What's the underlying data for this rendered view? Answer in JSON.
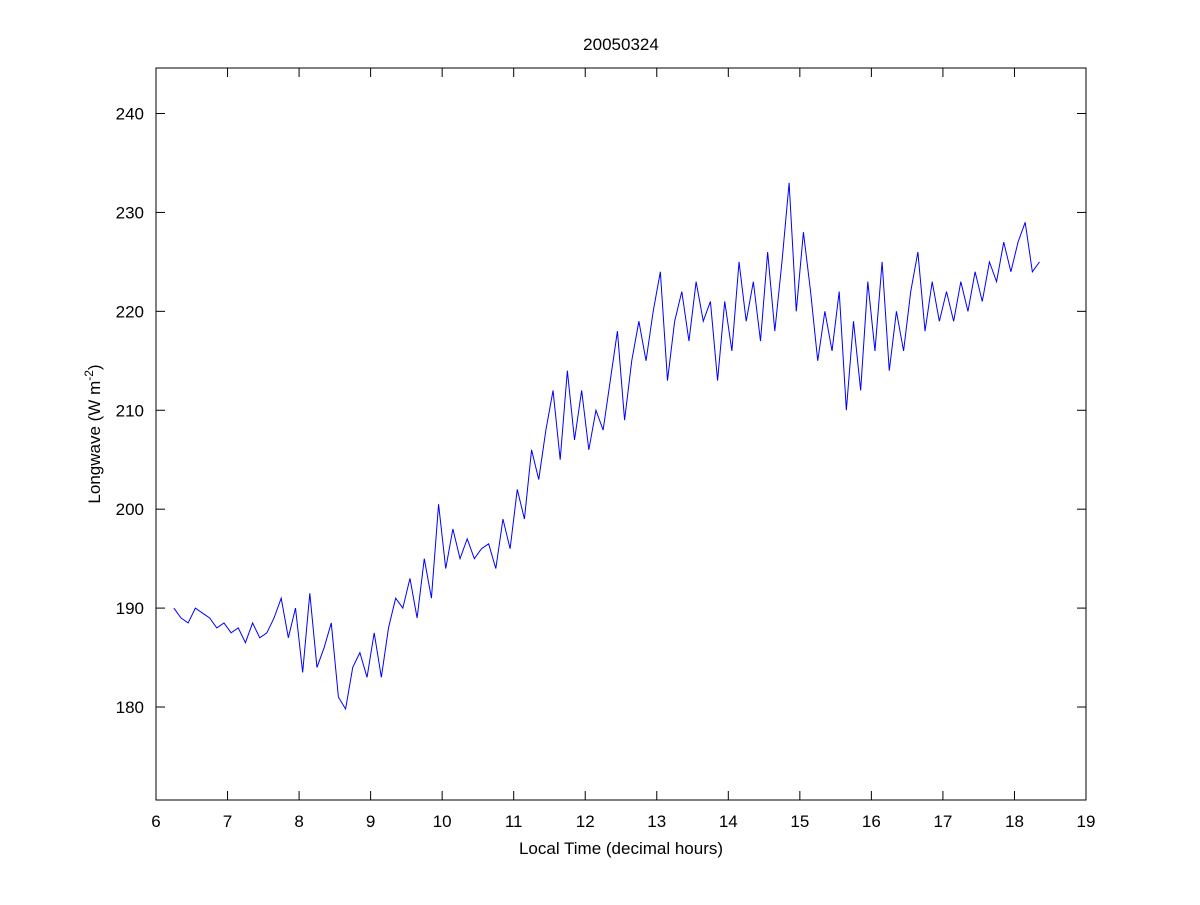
{
  "chart_data": {
    "type": "line",
    "title": "20050324",
    "xlabel": "Local Time (decimal hours)",
    "ylabel": {
      "text": "Longwave (W m",
      "superscript": "-2",
      "end": ")"
    },
    "x": [
      6.25,
      6.35,
      6.45,
      6.55,
      6.65,
      6.75,
      6.85,
      6.95,
      7.05,
      7.15,
      7.25,
      7.35,
      7.45,
      7.55,
      7.65,
      7.75,
      7.85,
      7.95,
      8.05,
      8.15,
      8.25,
      8.35,
      8.45,
      8.55,
      8.65,
      8.75,
      8.85,
      8.95,
      9.05,
      9.15,
      9.25,
      9.35,
      9.45,
      9.55,
      9.65,
      9.75,
      9.85,
      9.95,
      10.05,
      10.15,
      10.25,
      10.35,
      10.45,
      10.55,
      10.65,
      10.75,
      10.85,
      10.95,
      11.05,
      11.15,
      11.25,
      11.35,
      11.45,
      11.55,
      11.65,
      11.75,
      11.85,
      11.95,
      12.05,
      12.15,
      12.25,
      12.35,
      12.45,
      12.55,
      12.65,
      12.75,
      12.85,
      12.95,
      13.05,
      13.15,
      13.25,
      13.35,
      13.45,
      13.55,
      13.65,
      13.75,
      13.85,
      13.95,
      14.05,
      14.15,
      14.25,
      14.35,
      14.45,
      14.55,
      14.65,
      14.75,
      14.85,
      14.95,
      15.05,
      15.15,
      15.25,
      15.35,
      15.45,
      15.55,
      15.65,
      15.75,
      15.85,
      15.95,
      16.05,
      16.15,
      16.25,
      16.35,
      16.45,
      16.55,
      16.65,
      16.75,
      16.85,
      16.95,
      17.05,
      17.15,
      17.25,
      17.35,
      17.45,
      17.55,
      17.65,
      17.75,
      17.85,
      17.95,
      18.05,
      18.15,
      18.25,
      18.35
    ],
    "series": [
      {
        "color": "#0000ff",
        "values": [
          190,
          189,
          188.5,
          190,
          189.5,
          189,
          188,
          188.5,
          187.5,
          188,
          186.5,
          188.5,
          187,
          187.5,
          189,
          191,
          187,
          190,
          183.5,
          191.5,
          184,
          186,
          188.5,
          181,
          179.8,
          184,
          185.5,
          183,
          187.5,
          183,
          188,
          191,
          190,
          193,
          189,
          195,
          191,
          200.5,
          194,
          198,
          195,
          197,
          195,
          196,
          196.5,
          194,
          199,
          196,
          202,
          199,
          206,
          203,
          208,
          212,
          205,
          214,
          207,
          212,
          206,
          210,
          208,
          213,
          218,
          209,
          215,
          219,
          215,
          220,
          224,
          213,
          219,
          222,
          217,
          223,
          219,
          221,
          213,
          221,
          216,
          225,
          219,
          223,
          217,
          226,
          218,
          225,
          233,
          220,
          228,
          222,
          215,
          220,
          216,
          222,
          210,
          219,
          212,
          223,
          216,
          225,
          214,
          220,
          216,
          222,
          226,
          218,
          223,
          219,
          222,
          219,
          223,
          220,
          224,
          221,
          225,
          223,
          227,
          224,
          227,
          229,
          224,
          225
        ]
      }
    ],
    "xlim": [
      6,
      19
    ],
    "xticks": [
      6,
      7,
      8,
      9,
      10,
      11,
      12,
      13,
      14,
      15,
      16,
      17,
      18,
      19
    ],
    "ylim": [
      170.6,
      244.6
    ],
    "yticks": [
      180,
      190,
      200,
      210,
      220,
      230,
      240
    ]
  }
}
